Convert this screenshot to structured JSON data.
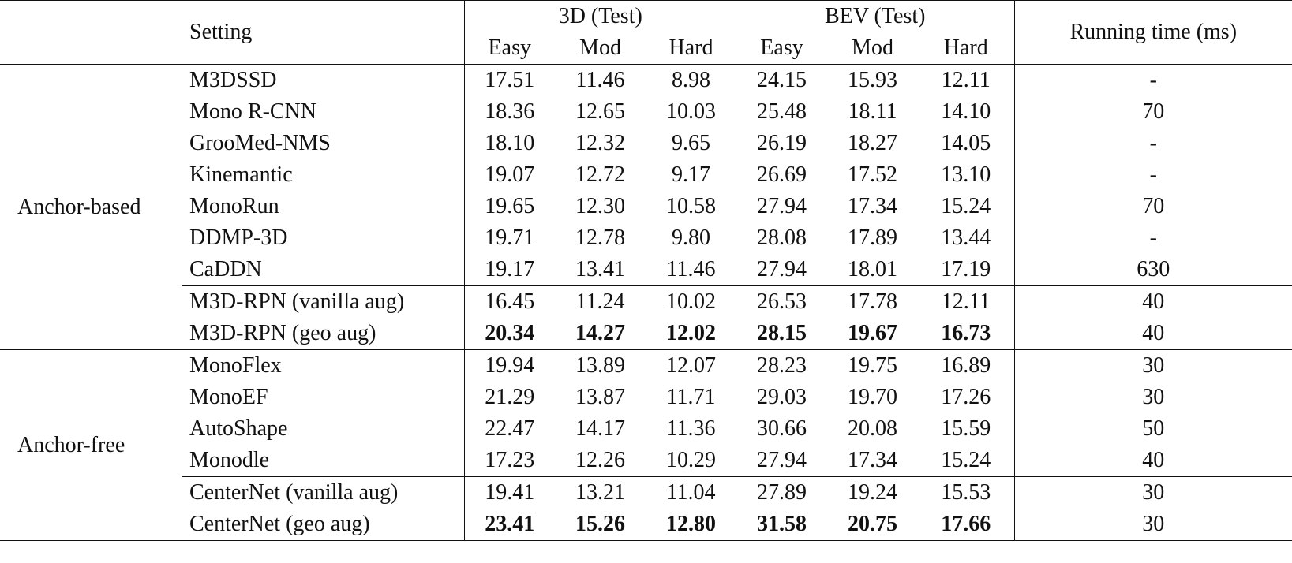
{
  "header": {
    "setting": "Setting",
    "group_3d": "3D (Test)",
    "group_bev": "BEV (Test)",
    "running_time": "Running time (ms)",
    "sub": [
      "Easy",
      "Mod",
      "Hard",
      "Easy",
      "Mod",
      "Hard"
    ]
  },
  "groups": [
    {
      "label": "Anchor-based",
      "blocks": [
        [
          {
            "name": "M3DSSD",
            "vals": [
              "17.51",
              "11.46",
              "8.98",
              "24.15",
              "15.93",
              "12.11"
            ],
            "time": "-",
            "bold": false
          },
          {
            "name": "Mono R-CNN",
            "vals": [
              "18.36",
              "12.65",
              "10.03",
              "25.48",
              "18.11",
              "14.10"
            ],
            "time": "70",
            "bold": false
          },
          {
            "name": "GrooMed-NMS",
            "vals": [
              "18.10",
              "12.32",
              "9.65",
              "26.19",
              "18.27",
              "14.05"
            ],
            "time": "-",
            "bold": false
          },
          {
            "name": "Kinemantic",
            "vals": [
              "19.07",
              "12.72",
              "9.17",
              "26.69",
              "17.52",
              "13.10"
            ],
            "time": "-",
            "bold": false
          },
          {
            "name": "MonoRun",
            "vals": [
              "19.65",
              "12.30",
              "10.58",
              "27.94",
              "17.34",
              "15.24"
            ],
            "time": "70",
            "bold": false
          },
          {
            "name": "DDMP-3D",
            "vals": [
              "19.71",
              "12.78",
              "9.80",
              "28.08",
              "17.89",
              "13.44"
            ],
            "time": "-",
            "bold": false
          },
          {
            "name": "CaDDN",
            "vals": [
              "19.17",
              "13.41",
              "11.46",
              "27.94",
              "18.01",
              "17.19"
            ],
            "time": "630",
            "bold": false
          }
        ],
        [
          {
            "name": "M3D-RPN (vanilla aug)",
            "vals": [
              "16.45",
              "11.24",
              "10.02",
              "26.53",
              "17.78",
              "12.11"
            ],
            "time": "40",
            "bold": false
          },
          {
            "name": "M3D-RPN (geo aug)",
            "vals": [
              "20.34",
              "14.27",
              "12.02",
              "28.15",
              "19.67",
              "16.73"
            ],
            "time": "40",
            "bold": true
          }
        ]
      ]
    },
    {
      "label": "Anchor-free",
      "blocks": [
        [
          {
            "name": "MonoFlex",
            "vals": [
              "19.94",
              "13.89",
              "12.07",
              "28.23",
              "19.75",
              "16.89"
            ],
            "time": "30",
            "bold": false
          },
          {
            "name": "MonoEF",
            "vals": [
              "21.29",
              "13.87",
              "11.71",
              "29.03",
              "19.70",
              "17.26"
            ],
            "time": "30",
            "bold": false
          },
          {
            "name": "AutoShape",
            "vals": [
              "22.47",
              "14.17",
              "11.36",
              "30.66",
              "20.08",
              "15.59"
            ],
            "time": "50",
            "bold": false
          },
          {
            "name": "Monodle",
            "vals": [
              "17.23",
              "12.26",
              "10.29",
              "27.94",
              "17.34",
              "15.24"
            ],
            "time": "40",
            "bold": false
          }
        ],
        [
          {
            "name": "CenterNet (vanilla aug)",
            "vals": [
              "19.41",
              "13.21",
              "11.04",
              "27.89",
              "19.24",
              "15.53"
            ],
            "time": "30",
            "bold": false
          },
          {
            "name": "CenterNet (geo aug)",
            "vals": [
              "23.41",
              "15.26",
              "12.80",
              "31.58",
              "20.75",
              "17.66"
            ],
            "time": "30",
            "bold": true
          }
        ]
      ]
    }
  ]
}
